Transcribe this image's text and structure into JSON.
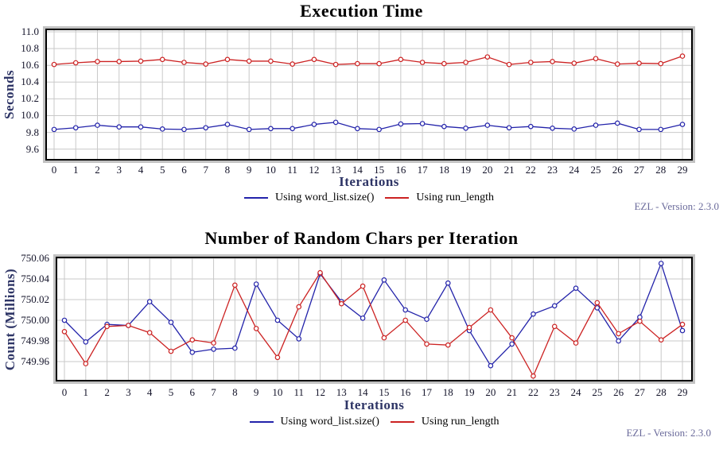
{
  "watermark": "EZL - Version: 2.3.0",
  "chart_data": [
    {
      "type": "line",
      "title": "Execution Time",
      "xlabel": "Iterations",
      "ylabel": "Seconds",
      "x": [
        0,
        1,
        2,
        3,
        4,
        5,
        6,
        7,
        8,
        9,
        10,
        11,
        12,
        13,
        14,
        15,
        16,
        17,
        18,
        19,
        20,
        21,
        22,
        23,
        24,
        25,
        26,
        27,
        28,
        29
      ],
      "ytick_labels": [
        "11.0",
        "10.8",
        "10.6",
        "10.4",
        "10.2",
        "10.0",
        "9.8",
        "9.6"
      ],
      "ylim": [
        9.483,
        11.019
      ],
      "grid": true,
      "legend_position": "bottom",
      "marker": "open-circle",
      "series": [
        {
          "name": "Using word_list.size()",
          "color": "#2323aa",
          "values": [
            9.835,
            9.855,
            9.885,
            9.865,
            9.865,
            9.84,
            9.835,
            9.855,
            9.895,
            9.835,
            9.845,
            9.845,
            9.895,
            9.92,
            9.845,
            9.835,
            9.9,
            9.905,
            9.87,
            9.85,
            9.885,
            9.855,
            9.87,
            9.85,
            9.84,
            9.885,
            9.91,
            9.835,
            9.835,
            9.895
          ]
        },
        {
          "name": "Using run_length",
          "color": "#cc2222",
          "values": [
            10.61,
            10.63,
            10.645,
            10.645,
            10.65,
            10.67,
            10.635,
            10.615,
            10.67,
            10.65,
            10.65,
            10.615,
            10.67,
            10.61,
            10.62,
            10.62,
            10.67,
            10.635,
            10.62,
            10.635,
            10.7,
            10.61,
            10.635,
            10.645,
            10.625,
            10.68,
            10.615,
            10.625,
            10.62,
            10.71
          ]
        }
      ],
      "watermark": "EZL - Version: 2.3.0"
    },
    {
      "type": "line",
      "title": "Number of Random Chars per Iteration",
      "xlabel": "Iterations",
      "ylabel": "Count  (Millions)",
      "x": [
        0,
        1,
        2,
        3,
        4,
        5,
        6,
        7,
        8,
        9,
        10,
        11,
        12,
        13,
        14,
        15,
        16,
        17,
        18,
        19,
        20,
        21,
        22,
        23,
        24,
        25,
        26,
        27,
        28,
        29
      ],
      "ytick_labels": [
        "750.06",
        "750.04",
        "750.02",
        "750.00",
        "749.98",
        "749.96"
      ],
      "ylim": [
        749.9423,
        750.06
      ],
      "grid": true,
      "legend_position": "bottom",
      "marker": "open-circle",
      "series": [
        {
          "name": "Using word_list.size()",
          "color": "#2323aa",
          "values": [
            750.0,
            749.979,
            749.996,
            749.995,
            750.018,
            749.998,
            749.969,
            749.972,
            749.973,
            750.035,
            750.0,
            749.982,
            750.045,
            750.018,
            750.002,
            750.039,
            750.01,
            750.001,
            750.036,
            749.99,
            749.956,
            749.977,
            750.006,
            750.014,
            750.031,
            750.012,
            749.98,
            750.003,
            750.055,
            749.99
          ]
        },
        {
          "name": "Using run_length",
          "color": "#cc2222",
          "values": [
            749.989,
            749.958,
            749.994,
            749.995,
            749.988,
            749.97,
            749.981,
            749.978,
            750.034,
            749.992,
            749.964,
            750.013,
            750.046,
            750.016,
            750.033,
            749.983,
            750.0,
            749.977,
            749.976,
            749.993,
            750.01,
            749.983,
            749.946,
            749.994,
            749.978,
            750.017,
            749.987,
            749.999,
            749.981,
            749.996
          ]
        }
      ],
      "watermark": "EZL - Version: 2.3.0"
    }
  ]
}
